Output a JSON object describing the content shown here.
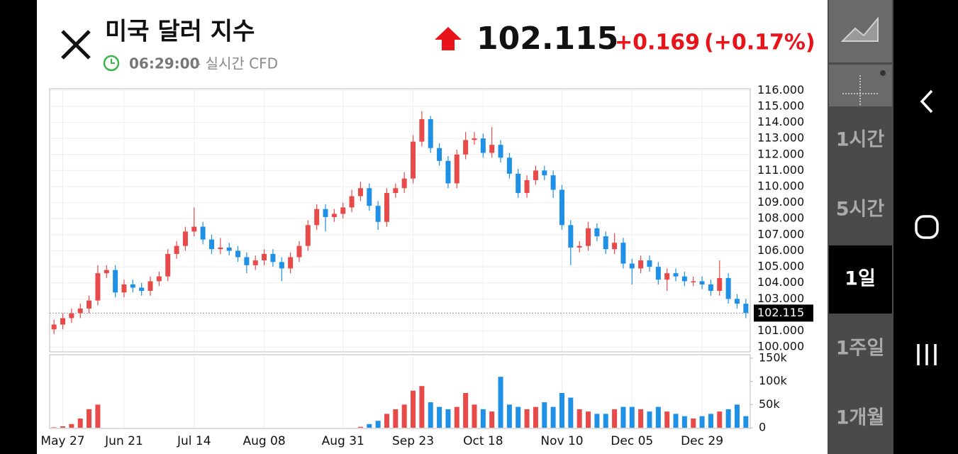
{
  "header": {
    "title": "미국 달러 지수",
    "time": "06:29:00",
    "feed": "- 실시간 CFD",
    "price": "102.115",
    "change": "+0.169",
    "change_pct": "(+0.17%)"
  },
  "toolbar": {
    "intervals": [
      "1시간",
      "5시간",
      "1일",
      "1주일",
      "1개월"
    ],
    "selected_index": 2
  },
  "chart_data": [
    {
      "type": "candlestick",
      "up_color": "#e84a4a",
      "down_color": "#1e90e6",
      "dates": [
        null,
        "May 27",
        null,
        null,
        null,
        null,
        null,
        null,
        "Jun 21",
        null,
        null,
        null,
        null,
        null,
        null,
        null,
        "Jul 14",
        null,
        null,
        null,
        null,
        null,
        null,
        null,
        "Aug 08",
        null,
        null,
        null,
        null,
        null,
        null,
        null,
        null,
        "Aug 31",
        null,
        null,
        null,
        null,
        null,
        null,
        null,
        "Sep 23",
        null,
        null,
        null,
        null,
        null,
        null,
        null,
        "Oct 18",
        null,
        null,
        null,
        null,
        null,
        null,
        null,
        null,
        "Nov 10",
        null,
        null,
        null,
        null,
        null,
        null,
        null,
        "Dec 05",
        null,
        null,
        null,
        null,
        null,
        null,
        null,
        "Dec 29",
        null,
        null,
        null,
        null,
        null
      ],
      "open": [
        101.1,
        101.4,
        101.8,
        102.1,
        102.4,
        102.9,
        104.6,
        104.8,
        103.4,
        103.9,
        103.7,
        103.5,
        104.1,
        104.4,
        105.8,
        106.3,
        107.2,
        107.5,
        106.7,
        106.1,
        106.2,
        106.0,
        105.6,
        105.1,
        105.4,
        105.8,
        105.3,
        104.9,
        105.6,
        106.3,
        107.6,
        108.6,
        108.1,
        108.3,
        108.7,
        109.4,
        109.9,
        108.8,
        107.8,
        109.6,
        109.9,
        110.5,
        112.8,
        114.2,
        112.4,
        111.6,
        110.2,
        112.0,
        112.9,
        113.0,
        112.1,
        112.6,
        111.8,
        110.8,
        109.6,
        110.4,
        111.0,
        110.7,
        109.8,
        107.6,
        106.2,
        106.3,
        107.4,
        106.9,
        106.1,
        106.5,
        105.2,
        104.9,
        105.4,
        105.0,
        104.2,
        104.6,
        104.4,
        104.1,
        104.1,
        103.9,
        103.5,
        104.3,
        103.0,
        102.7
      ],
      "high": [
        101.7,
        102.1,
        102.4,
        102.7,
        103.2,
        105.1,
        105.1,
        105.1,
        104.2,
        104.2,
        104.0,
        104.4,
        104.7,
        106.1,
        106.6,
        107.5,
        108.7,
        107.8,
        107.0,
        106.8,
        106.5,
        106.3,
        105.9,
        105.7,
        106.1,
        106.1,
        105.6,
        105.9,
        106.6,
        107.9,
        108.9,
        108.9,
        108.6,
        109.0,
        109.8,
        110.3,
        110.2,
        109.1,
        109.9,
        110.2,
        110.9,
        113.2,
        114.7,
        114.4,
        112.7,
        111.9,
        112.3,
        113.4,
        113.4,
        113.3,
        113.7,
        112.9,
        112.1,
        111.1,
        110.7,
        111.3,
        111.3,
        111.0,
        110.1,
        107.9,
        106.6,
        107.8,
        107.7,
        107.2,
        107.1,
        106.8,
        105.5,
        105.7,
        105.7,
        105.3,
        104.9,
        104.9,
        104.7,
        104.4,
        104.4,
        104.2,
        105.4,
        104.6,
        103.3,
        103.0
      ],
      "low": [
        100.8,
        101.1,
        101.5,
        101.8,
        102.1,
        102.6,
        104.3,
        103.1,
        103.1,
        103.4,
        103.2,
        103.2,
        103.8,
        104.1,
        105.5,
        106.0,
        106.9,
        106.4,
        105.8,
        105.8,
        105.7,
        105.3,
        104.6,
        104.8,
        105.1,
        105.0,
        104.1,
        104.6,
        105.3,
        106.0,
        107.3,
        107.2,
        107.8,
        108.0,
        108.4,
        109.1,
        108.5,
        107.3,
        107.5,
        109.3,
        109.6,
        110.2,
        112.5,
        112.1,
        111.3,
        109.9,
        109.9,
        111.7,
        112.6,
        111.8,
        111.8,
        111.5,
        110.5,
        109.3,
        109.3,
        110.1,
        110.4,
        109.3,
        107.3,
        105.1,
        105.9,
        106.0,
        106.6,
        105.8,
        105.8,
        104.9,
        103.9,
        104.6,
        104.7,
        103.9,
        103.5,
        104.1,
        103.8,
        103.8,
        103.6,
        103.2,
        103.2,
        102.7,
        102.4,
        101.8
      ],
      "close": [
        101.4,
        101.8,
        102.1,
        102.4,
        102.9,
        104.6,
        104.8,
        103.4,
        103.9,
        103.7,
        103.5,
        104.1,
        104.4,
        105.8,
        106.3,
        107.2,
        107.5,
        106.7,
        106.1,
        106.2,
        106.0,
        105.6,
        105.1,
        105.4,
        105.8,
        105.3,
        104.9,
        105.6,
        106.3,
        107.6,
        108.6,
        108.1,
        108.3,
        108.7,
        109.4,
        109.9,
        108.8,
        107.8,
        109.6,
        109.9,
        110.5,
        112.8,
        114.2,
        112.4,
        111.6,
        110.2,
        112.0,
        112.9,
        113.0,
        112.1,
        112.6,
        111.8,
        110.8,
        109.6,
        110.4,
        111.0,
        110.7,
        109.8,
        107.6,
        106.2,
        106.3,
        107.4,
        106.9,
        106.1,
        106.5,
        105.2,
        104.9,
        105.4,
        105.0,
        104.2,
        104.6,
        104.4,
        104.1,
        104.1,
        103.9,
        103.5,
        104.3,
        103.0,
        102.7,
        102.115
      ],
      "ylim": [
        99.7,
        116.1
      ],
      "yticks": [
        {
          "value": 100,
          "label": "100.000"
        },
        {
          "value": 101,
          "label": "101.000"
        },
        {
          "value": 102,
          "label": "102.000"
        },
        {
          "value": 103,
          "label": "103.000"
        },
        {
          "value": 104,
          "label": "104.000"
        },
        {
          "value": 105,
          "label": "105.000"
        },
        {
          "value": 106,
          "label": "106.000"
        },
        {
          "value": 107,
          "label": "107.000"
        },
        {
          "value": 108,
          "label": "108.000"
        },
        {
          "value": 109,
          "label": "109.000"
        },
        {
          "value": 110,
          "label": "110.000"
        },
        {
          "value": 111,
          "label": "111.000"
        },
        {
          "value": 112,
          "label": "112.000"
        },
        {
          "value": 113,
          "label": "113.000"
        },
        {
          "value": 114,
          "label": "114.000"
        },
        {
          "value": 115,
          "label": "115.000"
        },
        {
          "value": 116,
          "label": "116.000"
        }
      ],
      "last_price": {
        "value": 102.115,
        "label": "102.115"
      },
      "grid": true
    },
    {
      "type": "bar",
      "values": [
        1000,
        3000,
        8000,
        20000,
        40000,
        50000,
        0,
        0,
        0,
        0,
        0,
        0,
        0,
        0,
        0,
        0,
        0,
        0,
        0,
        0,
        0,
        0,
        0,
        0,
        0,
        0,
        0,
        0,
        0,
        0,
        0,
        0,
        0,
        0,
        0,
        2000,
        8000,
        15000,
        30000,
        40000,
        50000,
        80000,
        90000,
        55000,
        45000,
        40000,
        45000,
        75000,
        50000,
        40000,
        35000,
        110000,
        50000,
        45000,
        40000,
        45000,
        55000,
        45000,
        75000,
        65000,
        40000,
        35000,
        30000,
        30000,
        40000,
        45000,
        45000,
        40000,
        35000,
        45000,
        35000,
        30000,
        25000,
        20000,
        25000,
        30000,
        35000,
        40000,
        50000,
        25000
      ],
      "ylim": [
        0,
        150000
      ],
      "yticks": [
        {
          "value": 0,
          "label": "0"
        },
        {
          "value": 50000,
          "label": "50k"
        },
        {
          "value": 100000,
          "label": "100k"
        },
        {
          "value": 150000,
          "label": "150k"
        }
      ]
    }
  ]
}
